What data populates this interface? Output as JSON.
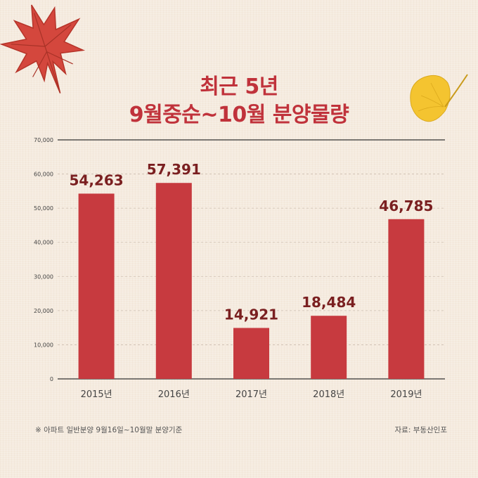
{
  "header": {
    "line1": "최근 5년",
    "line2": "9월중순~10월 분양물량"
  },
  "footer": {
    "note": "※ 아파트 일반분양 9월16일~10월말 분양기준",
    "source": "자료: 부동산인포"
  },
  "colors": {
    "bar": "#c73a3f",
    "title": "#c0323b",
    "value_label": "#7a1f20",
    "background": "#f5ebdf"
  },
  "chart_data": {
    "type": "bar",
    "categories": [
      "2015년",
      "2016년",
      "2017년",
      "2018년",
      "2019년"
    ],
    "values": [
      54263,
      57391,
      14921,
      18484,
      46785
    ],
    "value_labels": [
      "54,263",
      "57,391",
      "14,921",
      "18,484",
      "46,785"
    ],
    "yticks": [
      "0",
      "10,000",
      "20,000",
      "30,000",
      "40,000",
      "50,000",
      "60,000",
      "70,000"
    ],
    "ylim": [
      0,
      70000
    ],
    "grid": "dashed horizontal",
    "legend": "none",
    "title": "",
    "xlabel": "",
    "ylabel": ""
  }
}
